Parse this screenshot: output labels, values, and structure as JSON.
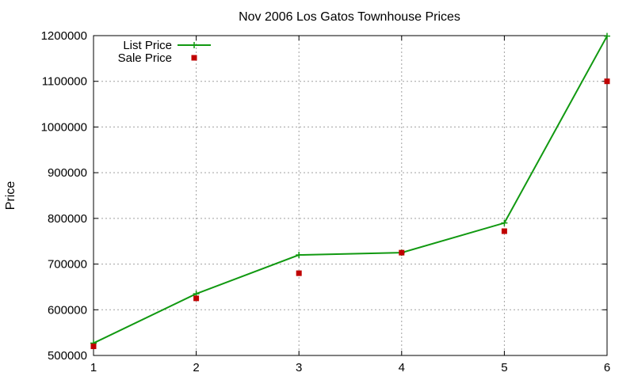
{
  "chart_data": {
    "type": "line",
    "title": "Nov 2006 Los Gatos Townhouse Prices",
    "xlabel": "",
    "ylabel": "Price",
    "x": [
      1,
      2,
      3,
      4,
      5,
      6
    ],
    "xlim": [
      1,
      6
    ],
    "ylim": [
      500000,
      1200000
    ],
    "xticks": [
      "1",
      "2",
      "3",
      "4",
      "5",
      "6"
    ],
    "yticks": [
      "500000",
      "600000",
      "700000",
      "800000",
      "900000",
      "1000000",
      "1100000",
      "1200000"
    ],
    "grid": true,
    "legend_position": "top-left",
    "series": [
      {
        "name": "List Price",
        "style": "line-with-plus-markers",
        "color": "#119911",
        "values": [
          527000,
          635000,
          720000,
          725000,
          790000,
          1199000
        ]
      },
      {
        "name": "Sale Price",
        "style": "square-markers",
        "color": "#c00000",
        "values": [
          520000,
          625000,
          680000,
          725000,
          772000,
          1100000
        ]
      }
    ]
  }
}
